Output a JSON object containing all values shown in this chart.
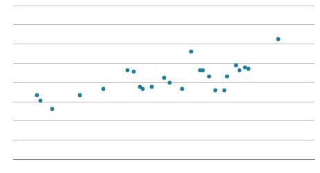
{
  "x": [
    0.8,
    0.9,
    1.3,
    2.2,
    3.0,
    3.8,
    4.0,
    4.2,
    4.3,
    4.6,
    5.0,
    5.2,
    5.6,
    5.9,
    6.2,
    6.3,
    6.5,
    6.7,
    7.0,
    7.1,
    7.4,
    7.5,
    7.7,
    7.8,
    8.8
  ],
  "y": [
    4.2,
    3.8,
    3.3,
    4.2,
    4.6,
    5.8,
    5.7,
    4.7,
    4.6,
    4.7,
    5.3,
    5.0,
    4.6,
    7.0,
    5.8,
    5.8,
    5.4,
    4.5,
    4.5,
    5.4,
    6.1,
    5.8,
    6.0,
    5.9,
    7.8
  ],
  "dot_color": "#1b7e9a",
  "dot_size": 18,
  "background_color": "#ffffff",
  "grid_color": "#bbbbbb",
  "spine_color": "#888888",
  "xlim": [
    0,
    10
  ],
  "ylim": [
    0,
    10
  ],
  "yticks": [
    0,
    1.25,
    2.5,
    3.75,
    5.0,
    6.25,
    7.5,
    8.75,
    10.0
  ]
}
